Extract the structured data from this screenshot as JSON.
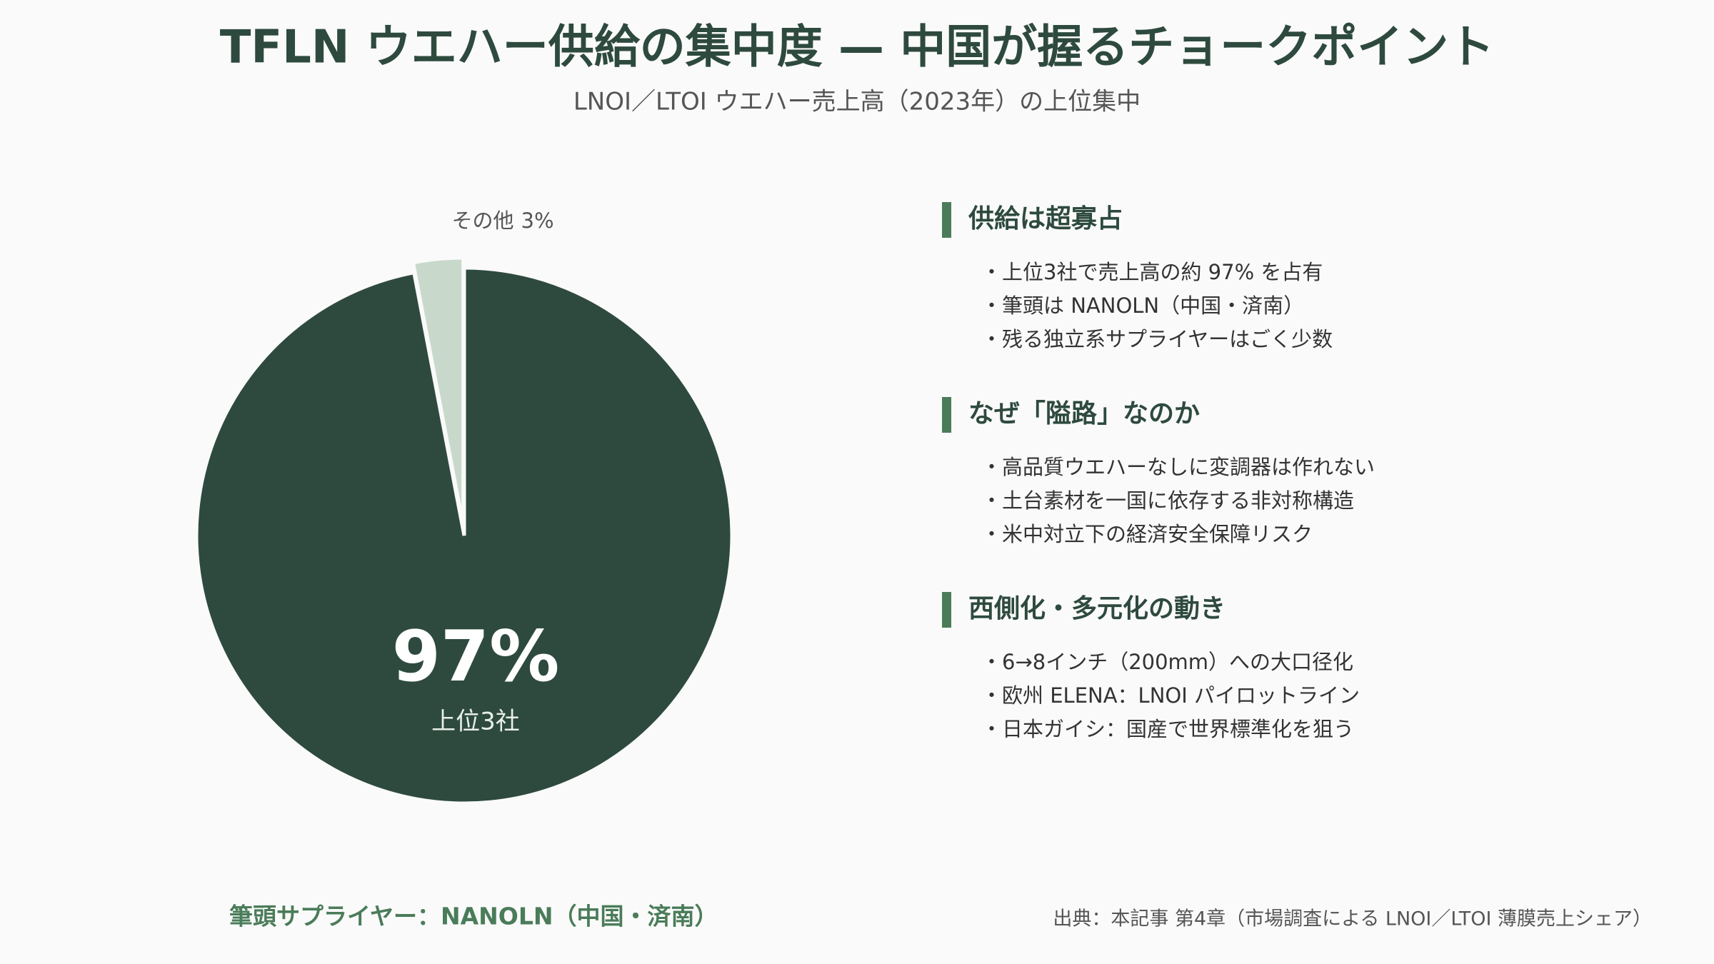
{
  "chart_data": {
    "type": "pie",
    "title": "TFLN ウエハー供給の集中度 — 中国が握るチョークポイント",
    "subtitle": "LNOI／LTOI ウエハー売上高（2023年）の上位集中",
    "categories": [
      "上位3社",
      "その他"
    ],
    "values": [
      97,
      3
    ],
    "value_labels": [
      "97%",
      "3%"
    ],
    "colors": [
      "#2e4a3e",
      "#c8d9cc"
    ]
  },
  "panel": {
    "sections": [
      {
        "heading": "供給は超寡占",
        "items": [
          "・上位3社で売上高の約 97% を占有",
          "・筆頭は NANOLN（中国・済南）",
          "・残る独立系サプライヤーはごく少数"
        ]
      },
      {
        "heading": "なぜ「隘路」なのか",
        "items": [
          "・高品質ウエハーなしに変調器は作れない",
          "・土台素材を一国に依存する非対称構造",
          "・米中対立下の経済安全保障リスク"
        ]
      },
      {
        "heading": "西側化・多元化の動き",
        "items": [
          "・6→8インチ（200mm）への大口径化",
          "・欧州 ELENA：LNOI パイロットライン",
          "・日本ガイシ：国産で世界標準化を狙う"
        ]
      }
    ]
  },
  "footer": {
    "note": "筆頭サプライヤー：NANOLN（中国・済南）",
    "source": "出典：本記事 第4章（市場調査による LNOI／LTOI 薄膜売上シェア）"
  }
}
